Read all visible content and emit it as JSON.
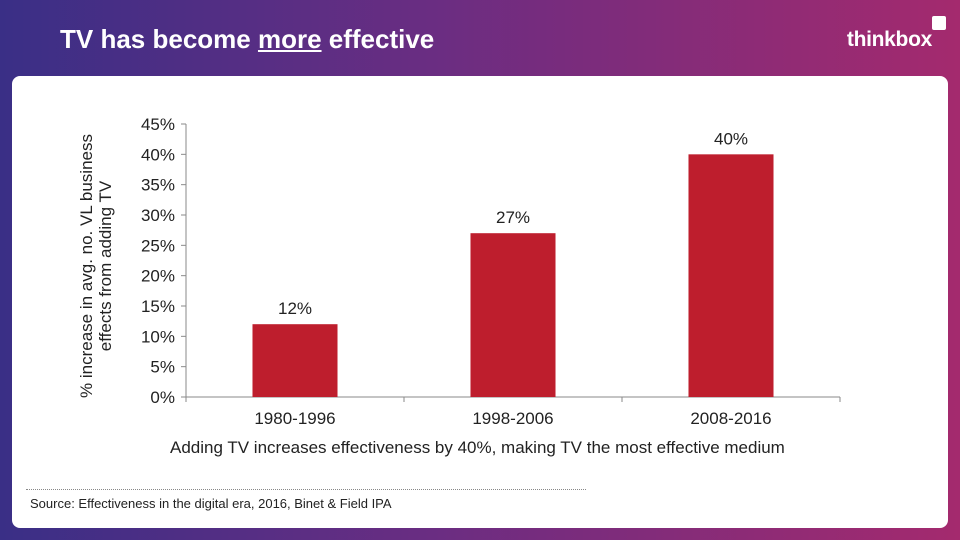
{
  "slide": {
    "title_before": "TV has become ",
    "title_emphasis": "more",
    "title_after": " effective",
    "brand": "thinkbox",
    "caption": "Adding TV increases effectiveness by 40%, making TV the most effective medium",
    "source": "Source: Effectiveness in the digital era, 2016, Binet & Field IPA"
  },
  "colors": {
    "bar": "#be1e2d",
    "accent_gradient_start": "#3a2f86",
    "accent_gradient_end": "#a42a6e"
  },
  "chart_data": {
    "type": "bar",
    "categories": [
      "1980-1996",
      "1998-2006",
      "2008-2016"
    ],
    "values": [
      12,
      27,
      40
    ],
    "data_labels": [
      "12%",
      "27%",
      "40%"
    ],
    "ylabel": "% increase in avg. no. VL business effects from adding TV",
    "ylim": [
      0,
      45
    ],
    "yticks": [
      0,
      5,
      10,
      15,
      20,
      25,
      30,
      35,
      40,
      45
    ],
    "ytick_labels": [
      "0%",
      "5%",
      "10%",
      "15%",
      "20%",
      "25%",
      "30%",
      "35%",
      "40%",
      "45%"
    ],
    "grid": false,
    "legend": "none"
  }
}
